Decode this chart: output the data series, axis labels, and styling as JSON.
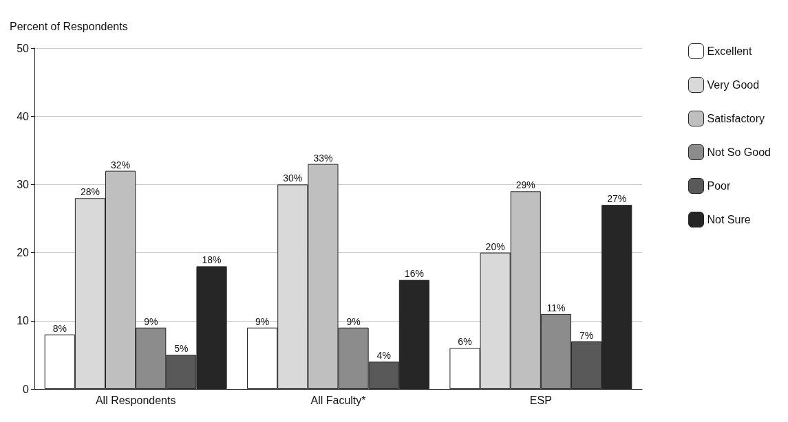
{
  "chart_data": {
    "type": "bar",
    "ylabel": "Percent of Respondents",
    "categories": [
      "All Respondents",
      "All Faculty*",
      "ESP"
    ],
    "series": [
      {
        "name": "Excellent",
        "color": "#ffffff",
        "values": [
          8,
          9,
          6
        ],
        "value_labels": [
          "8%",
          "9%",
          "6%"
        ]
      },
      {
        "name": "Very Good",
        "color": "#d9d9d9",
        "values": [
          28,
          30,
          20
        ],
        "value_labels": [
          "28%",
          "30%",
          "20%"
        ]
      },
      {
        "name": "Satisfactory",
        "color": "#bfbfbf",
        "values": [
          32,
          33,
          29
        ],
        "value_labels": [
          "32%",
          "33%",
          "29%"
        ]
      },
      {
        "name": "Not So Good",
        "color": "#8c8c8c",
        "values": [
          9,
          9,
          11
        ],
        "value_labels": [
          "9%",
          "9%",
          "11%"
        ]
      },
      {
        "name": "Poor",
        "color": "#595959",
        "values": [
          5,
          4,
          7
        ],
        "value_labels": [
          "5%",
          "4%",
          "7%"
        ]
      },
      {
        "name": "Not Sure",
        "color": "#262626",
        "values": [
          18,
          16,
          27
        ],
        "value_labels": [
          "18%",
          "16%",
          "27%"
        ]
      }
    ],
    "ylim": [
      0,
      50
    ],
    "yticks": [
      0,
      10,
      20,
      30,
      40,
      50
    ],
    "grid": "y",
    "legend": "right"
  }
}
